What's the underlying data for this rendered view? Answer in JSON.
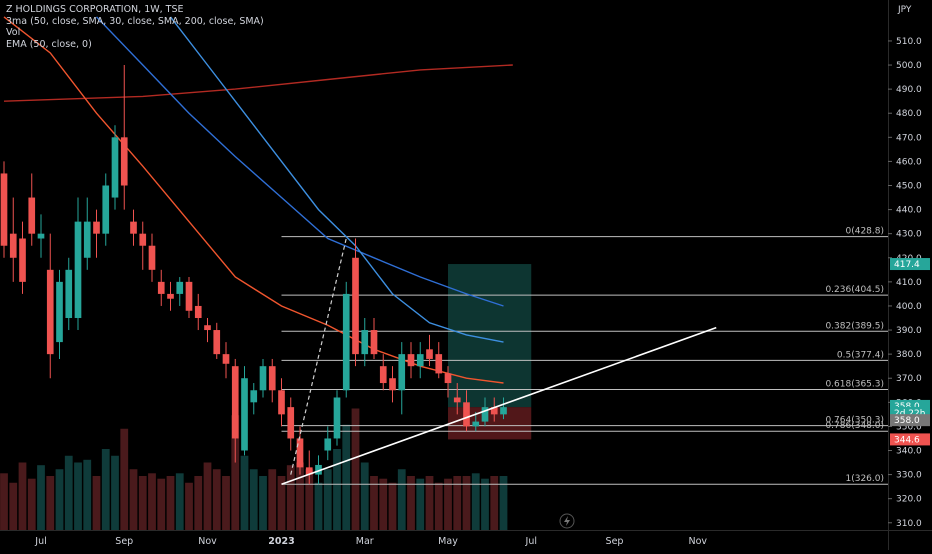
{
  "legend": {
    "title": "Z HOLDINGS CORPORATION, 1W, TSE",
    "ma": "3ma (50, close, SMA, 30, close, SMA, 200, close, SMA)",
    "vol": "Vol",
    "ema": "EMA (50, close, 0)"
  },
  "colors": {
    "background": "#000000",
    "up": "#26a69a",
    "down": "#ef5350",
    "vol_up": "#0f3b3a",
    "vol_down": "#4a1a1c",
    "ma30": "#2f6fd6",
    "ma50": "#3d8fe0",
    "ma200": "#b22a22",
    "ema50": "#f0552e",
    "fib": "#bfbfbf",
    "trendline": "#ffffff",
    "target_zone": "#0e3b36",
    "stop_zone": "#5a1a1c"
  },
  "chart_data": {
    "type": "candlestick",
    "currency": "JPY",
    "x_axis": {
      "labels": [
        "Jul",
        "Sep",
        "Nov",
        "2023",
        "Mar",
        "May",
        "Jul",
        "Sep",
        "Nov"
      ],
      "label_index": [
        4,
        13,
        22,
        30,
        39,
        48,
        57,
        66,
        75
      ]
    },
    "y_axis": {
      "ticks": [
        310,
        320,
        330,
        340,
        350,
        360,
        370,
        380,
        390,
        400,
        410,
        420,
        430,
        440,
        450,
        460,
        470,
        480,
        490,
        500,
        510
      ],
      "tick_labels": [
        "310.0",
        "320.0",
        "330.0",
        "340.0",
        "350.0",
        "360.0",
        "370.0",
        "380.0",
        "390.0",
        "400.0",
        "410.0",
        "420.0",
        "430.0",
        "440.0",
        "450.0",
        "460.0",
        "470.0",
        "480.0",
        "490.0",
        "500.0",
        "510.0"
      ],
      "range": [
        307,
        527
      ]
    },
    "candles": [
      {
        "o": 455,
        "h": 460,
        "l": 420,
        "c": 425
      },
      {
        "o": 430,
        "h": 445,
        "l": 410,
        "c": 420
      },
      {
        "o": 428,
        "h": 435,
        "l": 405,
        "c": 410
      },
      {
        "o": 445,
        "h": 455,
        "l": 425,
        "c": 430
      },
      {
        "o": 428,
        "h": 438,
        "l": 420,
        "c": 430
      },
      {
        "o": 415,
        "h": 430,
        "l": 370,
        "c": 380
      },
      {
        "o": 385,
        "h": 415,
        "l": 378,
        "c": 410
      },
      {
        "o": 395,
        "h": 420,
        "l": 390,
        "c": 415
      },
      {
        "o": 395,
        "h": 445,
        "l": 390,
        "c": 435
      },
      {
        "o": 420,
        "h": 445,
        "l": 415,
        "c": 435
      },
      {
        "o": 435,
        "h": 440,
        "l": 420,
        "c": 430
      },
      {
        "o": 430,
        "h": 455,
        "l": 425,
        "c": 450
      },
      {
        "o": 445,
        "h": 475,
        "l": 440,
        "c": 470
      },
      {
        "o": 470,
        "h": 500,
        "l": 440,
        "c": 450
      },
      {
        "o": 435,
        "h": 440,
        "l": 425,
        "c": 430
      },
      {
        "o": 430,
        "h": 435,
        "l": 415,
        "c": 425
      },
      {
        "o": 425,
        "h": 430,
        "l": 410,
        "c": 415
      },
      {
        "o": 410,
        "h": 415,
        "l": 400,
        "c": 405
      },
      {
        "o": 405,
        "h": 410,
        "l": 398,
        "c": 403
      },
      {
        "o": 405,
        "h": 412,
        "l": 400,
        "c": 410
      },
      {
        "o": 410,
        "h": 412,
        "l": 395,
        "c": 398
      },
      {
        "o": 400,
        "h": 405,
        "l": 390,
        "c": 395
      },
      {
        "o": 392,
        "h": 395,
        "l": 385,
        "c": 390
      },
      {
        "o": 390,
        "h": 393,
        "l": 378,
        "c": 380
      },
      {
        "o": 380,
        "h": 385,
        "l": 370,
        "c": 376
      },
      {
        "o": 375,
        "h": 378,
        "l": 335,
        "c": 345
      },
      {
        "o": 340,
        "h": 375,
        "l": 338,
        "c": 370
      },
      {
        "o": 360,
        "h": 368,
        "l": 355,
        "c": 365
      },
      {
        "o": 365,
        "h": 378,
        "l": 362,
        "c": 375
      },
      {
        "o": 375,
        "h": 378,
        "l": 360,
        "c": 365
      },
      {
        "o": 365,
        "h": 370,
        "l": 350,
        "c": 355
      },
      {
        "o": 358,
        "h": 362,
        "l": 340,
        "c": 345
      },
      {
        "o": 345,
        "h": 350,
        "l": 330,
        "c": 333
      },
      {
        "o": 333,
        "h": 340,
        "l": 326,
        "c": 330
      },
      {
        "o": 330,
        "h": 338,
        "l": 326,
        "c": 334
      },
      {
        "o": 340,
        "h": 350,
        "l": 336,
        "c": 345
      },
      {
        "o": 345,
        "h": 365,
        "l": 342,
        "c": 362
      },
      {
        "o": 365,
        "h": 410,
        "l": 362,
        "c": 405
      },
      {
        "o": 420,
        "h": 428,
        "l": 375,
        "c": 380
      },
      {
        "o": 380,
        "h": 395,
        "l": 375,
        "c": 390
      },
      {
        "o": 390,
        "h": 395,
        "l": 378,
        "c": 380
      },
      {
        "o": 375,
        "h": 380,
        "l": 365,
        "c": 368
      },
      {
        "o": 370,
        "h": 375,
        "l": 360,
        "c": 365
      },
      {
        "o": 365,
        "h": 385,
        "l": 355,
        "c": 380
      },
      {
        "o": 380,
        "h": 385,
        "l": 370,
        "c": 375
      },
      {
        "o": 375,
        "h": 385,
        "l": 370,
        "c": 380
      },
      {
        "o": 382,
        "h": 388,
        "l": 375,
        "c": 378
      },
      {
        "o": 380,
        "h": 385,
        "l": 370,
        "c": 372
      },
      {
        "o": 372,
        "h": 375,
        "l": 362,
        "c": 368
      },
      {
        "o": 362,
        "h": 368,
        "l": 355,
        "c": 360
      },
      {
        "o": 360,
        "h": 365,
        "l": 348,
        "c": 350
      },
      {
        "o": 350,
        "h": 356,
        "l": 348,
        "c": 352
      },
      {
        "o": 352,
        "h": 362,
        "l": 350,
        "c": 358
      },
      {
        "o": 358,
        "h": 362,
        "l": 352,
        "c": 355
      },
      {
        "o": 355,
        "h": 362,
        "l": 353,
        "c": 358
      }
    ],
    "sma200": [
      {
        "i": 0,
        "v": 485
      },
      {
        "i": 15,
        "v": 487
      },
      {
        "i": 25,
        "v": 490
      },
      {
        "i": 35,
        "v": 494
      },
      {
        "i": 45,
        "v": 498
      },
      {
        "i": 55,
        "v": 500
      }
    ],
    "sma30": [
      {
        "i": 10,
        "v": 520
      },
      {
        "i": 15,
        "v": 500
      },
      {
        "i": 20,
        "v": 480
      },
      {
        "i": 25,
        "v": 462
      },
      {
        "i": 30,
        "v": 445
      },
      {
        "i": 35,
        "v": 428
      },
      {
        "i": 40,
        "v": 420
      },
      {
        "i": 45,
        "v": 412
      },
      {
        "i": 50,
        "v": 405
      },
      {
        "i": 54,
        "v": 400
      }
    ],
    "sma50": [
      {
        "i": 18,
        "v": 520
      },
      {
        "i": 22,
        "v": 500
      },
      {
        "i": 26,
        "v": 480
      },
      {
        "i": 30,
        "v": 460
      },
      {
        "i": 34,
        "v": 440
      },
      {
        "i": 38,
        "v": 425
      },
      {
        "i": 42,
        "v": 405
      },
      {
        "i": 46,
        "v": 393
      },
      {
        "i": 50,
        "v": 388
      },
      {
        "i": 54,
        "v": 385
      }
    ],
    "ema50": [
      {
        "i": 0,
        "v": 520
      },
      {
        "i": 5,
        "v": 505
      },
      {
        "i": 10,
        "v": 480
      },
      {
        "i": 15,
        "v": 458
      },
      {
        "i": 20,
        "v": 435
      },
      {
        "i": 25,
        "v": 412
      },
      {
        "i": 30,
        "v": 400
      },
      {
        "i": 35,
        "v": 392
      },
      {
        "i": 40,
        "v": 382
      },
      {
        "i": 45,
        "v": 375
      },
      {
        "i": 50,
        "v": 370
      },
      {
        "i": 54,
        "v": 368
      }
    ],
    "volume": [
      0.42,
      0.35,
      0.5,
      0.38,
      0.48,
      0.4,
      0.45,
      0.55,
      0.5,
      0.52,
      0.4,
      0.6,
      0.55,
      0.75,
      0.45,
      0.4,
      0.42,
      0.38,
      0.4,
      0.42,
      0.35,
      0.4,
      0.5,
      0.45,
      0.4,
      0.85,
      0.55,
      0.45,
      0.4,
      0.45,
      0.4,
      0.48,
      0.5,
      0.45,
      0.35,
      0.45,
      0.6,
      0.78,
      0.9,
      0.5,
      0.4,
      0.38,
      0.35,
      0.45,
      0.4,
      0.38,
      0.4,
      0.35,
      0.38,
      0.4,
      0.4,
      0.42,
      0.38,
      0.4,
      0.4
    ],
    "fibonacci": {
      "start_index": 30,
      "end_index": 55,
      "levels": [
        {
          "label": "0(428.8)",
          "v": 428.8
        },
        {
          "label": "0.236(404.5)",
          "v": 404.5
        },
        {
          "label": "0.382(389.5)",
          "v": 389.5
        },
        {
          "label": "0.5(377.4)",
          "v": 377.4
        },
        {
          "label": "0.618(365.3)",
          "v": 365.3
        },
        {
          "label": "0.764(350.3)",
          "v": 350.3
        },
        {
          "label": "0.786(348.0)",
          "v": 348.0
        },
        {
          "label": "1(326.0)",
          "v": 326.0
        }
      ]
    },
    "trendline": {
      "i1": 30,
      "v1": 326,
      "i2": 77,
      "v2": 391
    },
    "dashed_line": {
      "i1": 31,
      "v1": 330,
      "i2": 37,
      "v2": 428
    },
    "position": {
      "i1": 48,
      "i2": 57,
      "entry": 358,
      "target": 417.4,
      "stop": 344.6
    },
    "price_labels": [
      {
        "text": "417.4",
        "v": 417.4,
        "color": "#26a69a"
      },
      {
        "text": "358.0",
        "v": 358.5,
        "color": "#26a69a"
      },
      {
        "text": "2d 22h",
        "v": 355.6,
        "color": "#26a69a"
      },
      {
        "text": "358.0",
        "v": 352.6,
        "color": "#777777"
      },
      {
        "text": "344.6",
        "v": 344.6,
        "color": "#ef5350"
      }
    ]
  }
}
